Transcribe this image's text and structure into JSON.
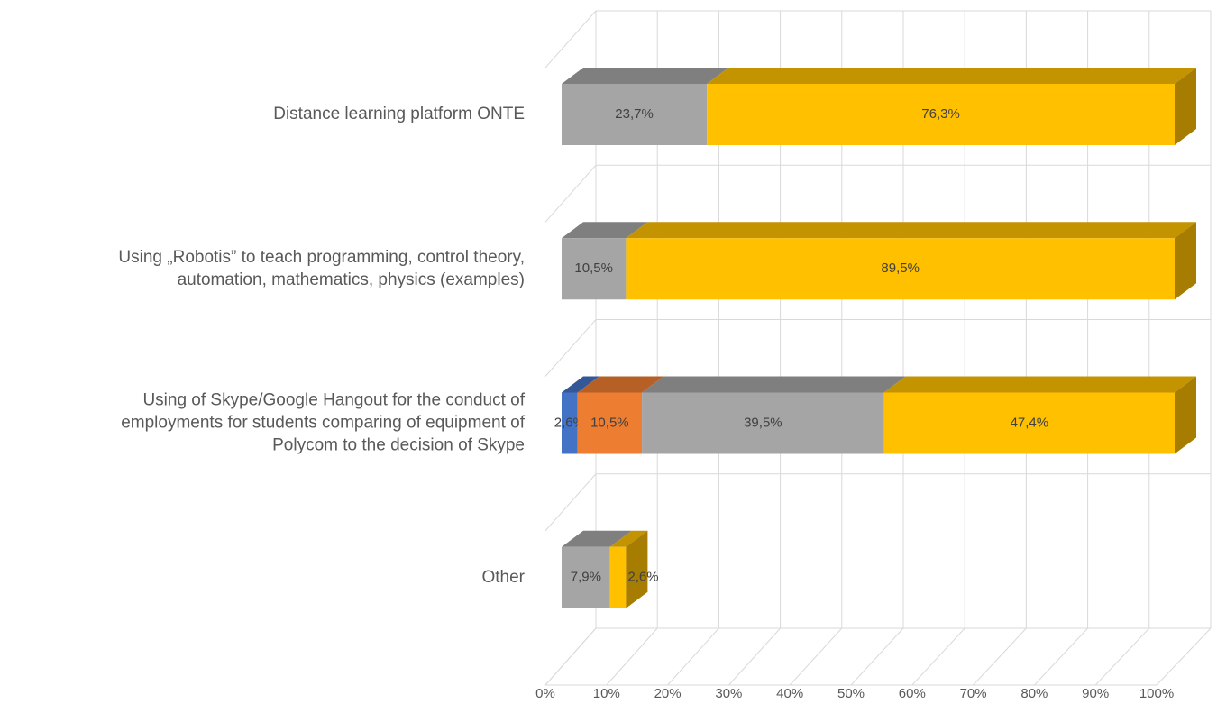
{
  "chart_data": {
    "type": "bar3d_stacked_horizontal",
    "categories": [
      [
        "Distance learning platform ONTE"
      ],
      [
        "Using  „Robotis” to teach programming, control theory,",
        "automation, mathematics, physics (examples)"
      ],
      [
        "Using of Skype/Google Hangout for the conduct of",
        "employments for students comparing of equipment of",
        "Polycom to the decision of Skype"
      ],
      [
        "Other"
      ]
    ],
    "series": [
      {
        "color": "#4472c4",
        "values": [
          null,
          null,
          2.6,
          null
        ],
        "value_labels": [
          null,
          null,
          "2,6%",
          null
        ]
      },
      {
        "color": "#ed7d31",
        "values": [
          null,
          null,
          10.5,
          null
        ],
        "value_labels": [
          null,
          null,
          "10,5%",
          null
        ]
      },
      {
        "color": "#a5a5a5",
        "values": [
          23.7,
          10.5,
          39.5,
          7.9
        ],
        "value_labels": [
          "23,7%",
          "10,5%",
          "39,5%",
          "7,9%"
        ]
      },
      {
        "color": "#ffc000",
        "values": [
          76.3,
          89.5,
          47.4,
          2.6
        ],
        "value_labels": [
          "76,3%",
          "89,5%",
          "47,4%",
          "2,6%"
        ]
      }
    ],
    "xlim": [
      0,
      100
    ],
    "xticks": [
      {
        "value": 0,
        "label": "0%"
      },
      {
        "value": 10,
        "label": "10%"
      },
      {
        "value": 20,
        "label": "20%"
      },
      {
        "value": 30,
        "label": "30%"
      },
      {
        "value": 40,
        "label": "40%"
      },
      {
        "value": 50,
        "label": "50%"
      },
      {
        "value": 60,
        "label": "60%"
      },
      {
        "value": 70,
        "label": "70%"
      },
      {
        "value": 80,
        "label": "80%"
      },
      {
        "value": 90,
        "label": "90%"
      },
      {
        "value": 100,
        "label": "100%"
      }
    ],
    "grid": true
  }
}
